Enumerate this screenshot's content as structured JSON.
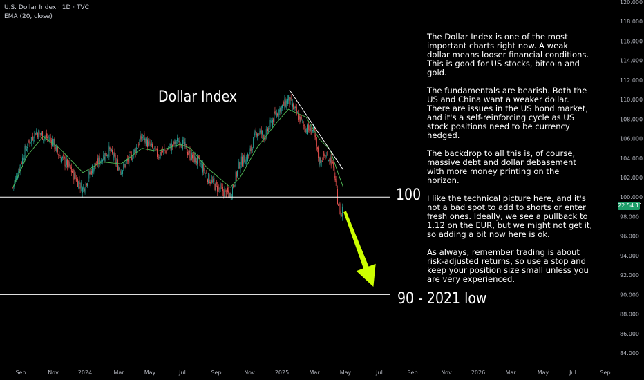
{
  "header": {
    "symbol_line": "U.S. Dollar Index · 1D · TVC",
    "indicator_line": "EMA (20, close)"
  },
  "labels": {
    "title": "Dollar Index",
    "level_100": "100",
    "level_90": "90 - 2021 low"
  },
  "notes": [
    "The Dollar Index is one of the most important charts right now. A weak dollar means looser financial conditions. This is good for US stocks, bitcoin and gold.",
    "The fundamentals are bearish. Both the US and China want a weaker dollar. There are issues in the US bond market, and it's a self-reinforcing cycle as US stock positions need to be currency hedged.",
    "The backdrop to all this is, of course, massive debt and dollar debasement with more money printing on the horizon.",
    "I like the technical picture here, and it's not a bad spot to add to shorts or enter fresh ones. Ideally, we see a pullback to 1.12 on the EUR, but we might not get it, so adding a bit now here is ok.",
    "As always, remember trading is about risk-adjusted returns, so use a stop and keep your position size small unless you are very experienced."
  ],
  "price_tag": "22:54:11",
  "colors": {
    "background": "#000000",
    "up_candle": "#26a69a",
    "down_candle": "#ef5350",
    "ema": "#4caf50",
    "arrow": "#ccff00",
    "lines": "#ffffff",
    "price_tag": "#1e9e6a"
  },
  "chart_data": {
    "type": "line",
    "title": "U.S. Dollar Index",
    "series": [
      {
        "name": "U.S. Dollar Index",
        "x": [
          "2023-08-20",
          "2023-09-01",
          "2023-09-15",
          "2023-10-01",
          "2023-10-15",
          "2023-11-01",
          "2023-11-15",
          "2023-12-01",
          "2023-12-28",
          "2024-01-15",
          "2024-02-01",
          "2024-02-15",
          "2024-03-08",
          "2024-04-01",
          "2024-04-16",
          "2024-05-01",
          "2024-05-15",
          "2024-06-01",
          "2024-06-26",
          "2024-07-15",
          "2024-08-01",
          "2024-08-15",
          "2024-09-01",
          "2024-09-27",
          "2024-10-15",
          "2024-11-01",
          "2024-11-15",
          "2024-12-01",
          "2024-12-20",
          "2025-01-13",
          "2025-02-01",
          "2025-02-15",
          "2025-03-01",
          "2025-03-11",
          "2025-03-20",
          "2025-04-01",
          "2025-04-08",
          "2025-04-15",
          "2025-04-21",
          "2025-04-25"
        ],
        "values": [
          101.0,
          103.0,
          105.3,
          106.7,
          106.3,
          105.8,
          104.2,
          103.2,
          100.8,
          103.0,
          104.0,
          104.8,
          102.7,
          104.6,
          106.2,
          105.2,
          104.3,
          104.9,
          105.9,
          104.2,
          103.5,
          102.1,
          101.0,
          100.2,
          103.5,
          104.3,
          106.8,
          106.3,
          108.5,
          110.0,
          108.2,
          107.0,
          106.8,
          103.7,
          104.2,
          104.0,
          102.5,
          99.5,
          98.0,
          99.5
        ]
      },
      {
        "name": "EMA (20, close)",
        "x": [
          "2023-08-20",
          "2023-09-15",
          "2023-10-15",
          "2023-11-15",
          "2023-12-28",
          "2024-02-01",
          "2024-03-08",
          "2024-04-16",
          "2024-05-15",
          "2024-06-26",
          "2024-07-15",
          "2024-08-15",
          "2024-09-27",
          "2024-10-15",
          "2024-11-15",
          "2024-12-20",
          "2025-01-13",
          "2025-02-15",
          "2025-03-11",
          "2025-04-01",
          "2025-04-15",
          "2025-04-25"
        ],
        "values": [
          101.0,
          104.2,
          106.2,
          105.0,
          102.5,
          103.6,
          103.4,
          105.0,
          104.7,
          105.4,
          105.0,
          103.0,
          101.0,
          102.0,
          105.0,
          107.5,
          109.0,
          108.2,
          106.0,
          104.8,
          102.5,
          101.0
        ]
      }
    ],
    "levels": [
      {
        "label": "100",
        "value": 100
      },
      {
        "label": "90 - 2021 low",
        "value": 90
      }
    ],
    "trendline": {
      "from": {
        "x": "2025-01-15",
        "y": 111.0
      },
      "to": {
        "x": "2025-04-25",
        "y": 102.8
      }
    },
    "projection_arrow": {
      "from": {
        "x": "2025-04-28",
        "y": 98.5
      },
      "to": {
        "x": "2025-06-20",
        "y": 90.8
      }
    },
    "y_ticks": [
      "84.000",
      "86.000",
      "88.000",
      "90.000",
      "92.000",
      "94.000",
      "96.000",
      "98.000",
      "100.000",
      "102.000",
      "104.000",
      "106.000",
      "108.000",
      "110.000",
      "112.000",
      "114.000",
      "116.000",
      "118.000",
      "120.000"
    ],
    "x_ticks": [
      "Sep",
      "Nov",
      "2024",
      "Mar",
      "May",
      "Jul",
      "Sep",
      "Nov",
      "2025",
      "Mar",
      "May",
      "Jul",
      "Sep",
      "Nov",
      "2026",
      "Mar",
      "May",
      "Jul",
      "Sep"
    ],
    "ylim": [
      84,
      120
    ],
    "axis_side": "right",
    "grid": false,
    "legend": "top-left"
  }
}
